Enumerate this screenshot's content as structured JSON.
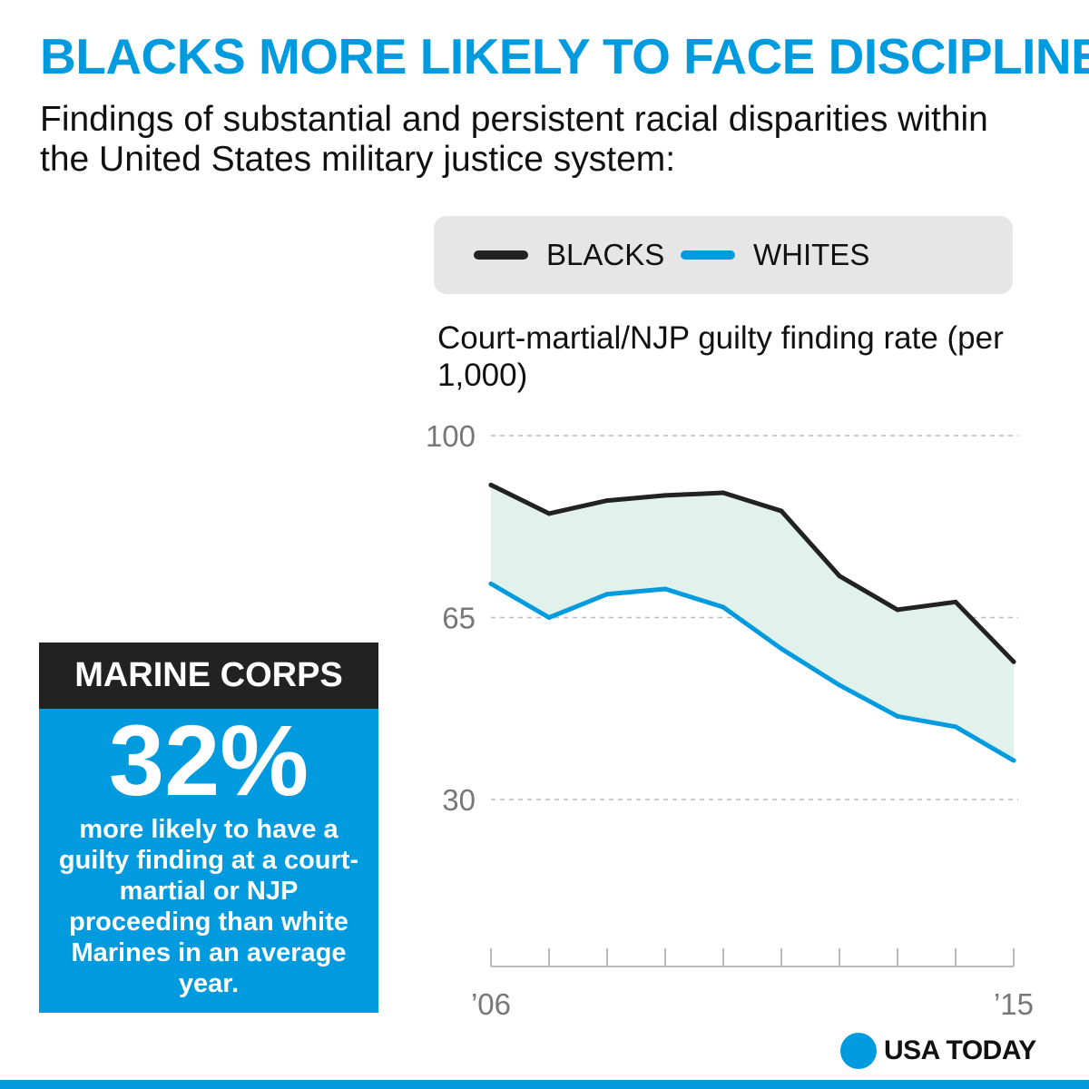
{
  "header": {
    "title": "BLACKS MORE LIKELY TO FACE DISCIPLINE",
    "subtitle": "Findings of substantial and persistent racial disparities within the United States military justice system:"
  },
  "legend": {
    "series_a": "BLACKS",
    "series_b": "WHITES"
  },
  "callout": {
    "heading": "MARINE CORPS",
    "big_number": "32%",
    "text": "more likely to have a guilty finding at a court-martial or NJP proceeding than white Marines in an average year."
  },
  "brand": {
    "name": "USA TODAY"
  },
  "colors": {
    "accent": "#009bde",
    "blacks_line": "#222222",
    "whites_line": "#009bde",
    "fill": "#e1f1eb",
    "grid": "#bbbbbb",
    "tick_text": "#777777",
    "callout_head_bg": "#222222",
    "legend_bg": "#e6e6e6",
    "white": "#ffffff"
  },
  "chart_data": {
    "type": "line",
    "title": "Court-martial/NJP guilty finding rate (per 1,000)",
    "xlabel": "",
    "ylabel": "Court-martial/NJP guilty finding rate (per 1,000)",
    "x": [
      2006,
      2007,
      2008,
      2009,
      2010,
      2011,
      2012,
      2013,
      2014,
      2015
    ],
    "x_tick_labels": [
      "’06",
      "’15"
    ],
    "ylim": [
      30,
      100
    ],
    "y_ticks": [
      30,
      65,
      100
    ],
    "grid": true,
    "legend_position": "top",
    "series": [
      {
        "name": "BLACKS",
        "values": [
          90.5,
          85,
          87.5,
          88.5,
          89,
          85.5,
          73,
          66.5,
          68,
          56.5
        ]
      },
      {
        "name": "WHITES",
        "values": [
          71.5,
          65,
          69.5,
          70.5,
          67,
          59,
          52,
          46,
          44,
          37.5
        ]
      }
    ],
    "shaded_region": "between series"
  }
}
